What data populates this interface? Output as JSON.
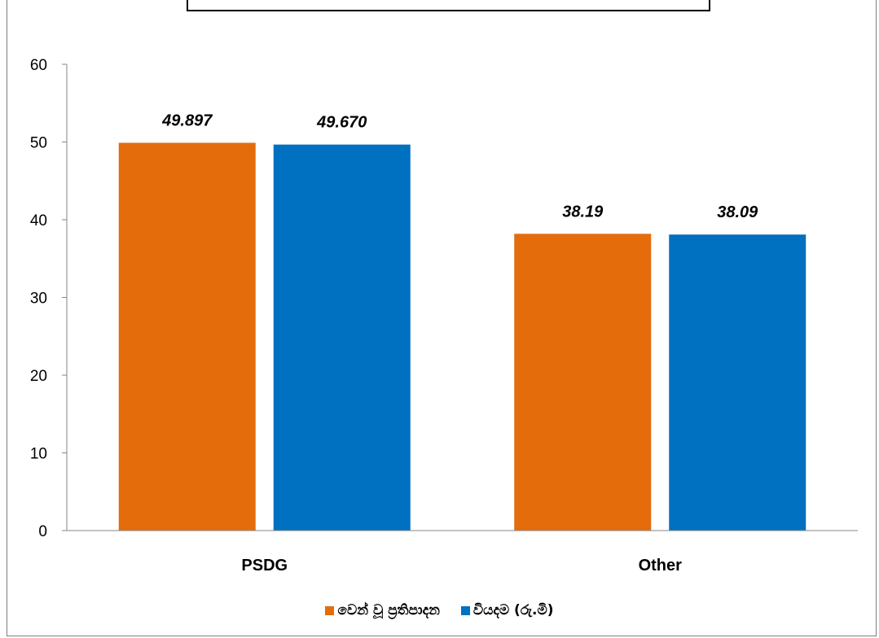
{
  "chart_data": {
    "type": "bar",
    "title": "",
    "xlabel": "",
    "ylabel": "",
    "categories": [
      "PSDG",
      "Other"
    ],
    "series": [
      {
        "name": "වෙන් වූ ප්‍රතිපාදන",
        "color": "#E46C0A",
        "values": [
          49.897,
          38.19
        ],
        "labels": [
          "49.897",
          "38.19"
        ]
      },
      {
        "name": "වියදම (රු.මි)",
        "color": "#0070C0",
        "values": [
          49.67,
          38.09
        ],
        "labels": [
          "49.670",
          "38.09"
        ]
      }
    ],
    "ylim": [
      0,
      60
    ],
    "yticks": [
      0,
      10,
      20,
      30,
      40,
      50,
      60
    ],
    "grid": false,
    "legend_position": "bottom"
  }
}
